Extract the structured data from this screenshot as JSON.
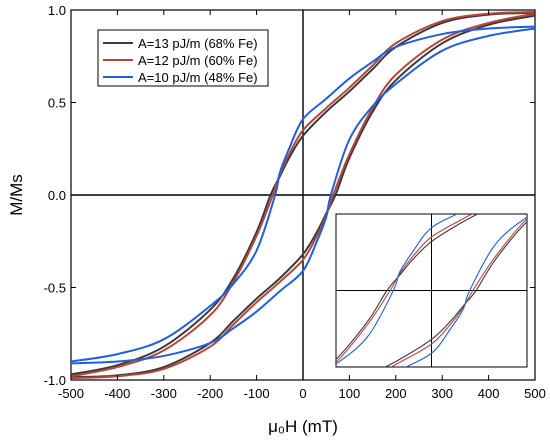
{
  "chart_data": {
    "type": "line",
    "xlabel": "μ₀H (mT)",
    "ylabel": "M/Ms",
    "xlim": [
      -500,
      500
    ],
    "ylim": [
      -1.0,
      1.0
    ],
    "x_ticks": [
      -500,
      -400,
      -300,
      -200,
      -100,
      0,
      100,
      200,
      300,
      400,
      500
    ],
    "y_ticks": [
      -1.0,
      -0.5,
      0.0,
      0.5,
      1.0
    ],
    "y_tick_labels": [
      "-1.0",
      "-0.5",
      "0.0",
      "0.5",
      "1.0"
    ],
    "grid": false,
    "legend_position": "top-left",
    "reference_lines": {
      "x": 0,
      "y": 0
    },
    "series": [
      {
        "name": "A=13 pJ/m (68% Fe)",
        "color": "#3a3a3a",
        "descending_branch": {
          "x": [
            500,
            400,
            300,
            200,
            150,
            100,
            50,
            0,
            -30,
            -50,
            -70,
            -100,
            -150,
            -200,
            -300,
            -400,
            -500
          ],
          "y": [
            0.985,
            0.975,
            0.93,
            0.8,
            0.68,
            0.56,
            0.45,
            0.32,
            0.2,
            0.1,
            0.0,
            -0.2,
            -0.45,
            -0.62,
            -0.82,
            -0.92,
            -0.97
          ]
        },
        "ascending_branch": {
          "x": [
            -500,
            -400,
            -300,
            -200,
            -150,
            -100,
            -50,
            0,
            30,
            50,
            70,
            100,
            150,
            200,
            300,
            400,
            500
          ],
          "y": [
            -0.985,
            -0.975,
            -0.93,
            -0.8,
            -0.68,
            -0.56,
            -0.45,
            -0.32,
            -0.2,
            -0.1,
            0.0,
            0.2,
            0.45,
            0.62,
            0.82,
            0.92,
            0.97
          ]
        }
      },
      {
        "name": "A=12 pJ/m (60% Fe)",
        "color": "#b5473a",
        "descending_branch": {
          "x": [
            500,
            400,
            300,
            200,
            150,
            100,
            50,
            0,
            -30,
            -50,
            -65,
            -100,
            -150,
            -200,
            -300,
            -400,
            -500
          ],
          "y": [
            0.99,
            0.98,
            0.94,
            0.82,
            0.7,
            0.58,
            0.47,
            0.35,
            0.22,
            0.11,
            0.0,
            -0.22,
            -0.47,
            -0.65,
            -0.84,
            -0.93,
            -0.98
          ]
        },
        "ascending_branch": {
          "x": [
            -500,
            -400,
            -300,
            -200,
            -150,
            -100,
            -50,
            0,
            30,
            50,
            65,
            100,
            150,
            200,
            300,
            400,
            500
          ],
          "y": [
            -0.99,
            -0.98,
            -0.94,
            -0.82,
            -0.7,
            -0.58,
            -0.47,
            -0.35,
            -0.22,
            -0.11,
            0.0,
            0.22,
            0.47,
            0.65,
            0.84,
            0.93,
            0.98
          ]
        }
      },
      {
        "name": "A=10 pJ/m (48% Fe)",
        "color": "#1f5fe0",
        "descending_branch": {
          "x": [
            500,
            400,
            300,
            200,
            150,
            100,
            50,
            0,
            -30,
            -50,
            -60,
            -100,
            -150,
            -200,
            -300,
            -400,
            -500
          ],
          "y": [
            0.91,
            0.9,
            0.87,
            0.8,
            0.72,
            0.63,
            0.52,
            0.41,
            0.25,
            0.12,
            0.0,
            -0.3,
            -0.48,
            -0.6,
            -0.78,
            -0.86,
            -0.9
          ]
        },
        "ascending_branch": {
          "x": [
            -500,
            -400,
            -300,
            -200,
            -150,
            -100,
            -50,
            0,
            30,
            50,
            60,
            100,
            150,
            200,
            300,
            400,
            500
          ],
          "y": [
            -0.91,
            -0.9,
            -0.87,
            -0.8,
            -0.72,
            -0.63,
            -0.52,
            -0.41,
            -0.25,
            -0.12,
            0.0,
            0.3,
            0.48,
            0.6,
            0.78,
            0.86,
            0.9
          ]
        }
      }
    ],
    "inset": {
      "position": "bottom-right",
      "xlim": [
        -150,
        150
      ],
      "ylim": [
        -0.5,
        0.5
      ],
      "axis_tick_labels": false
    }
  }
}
